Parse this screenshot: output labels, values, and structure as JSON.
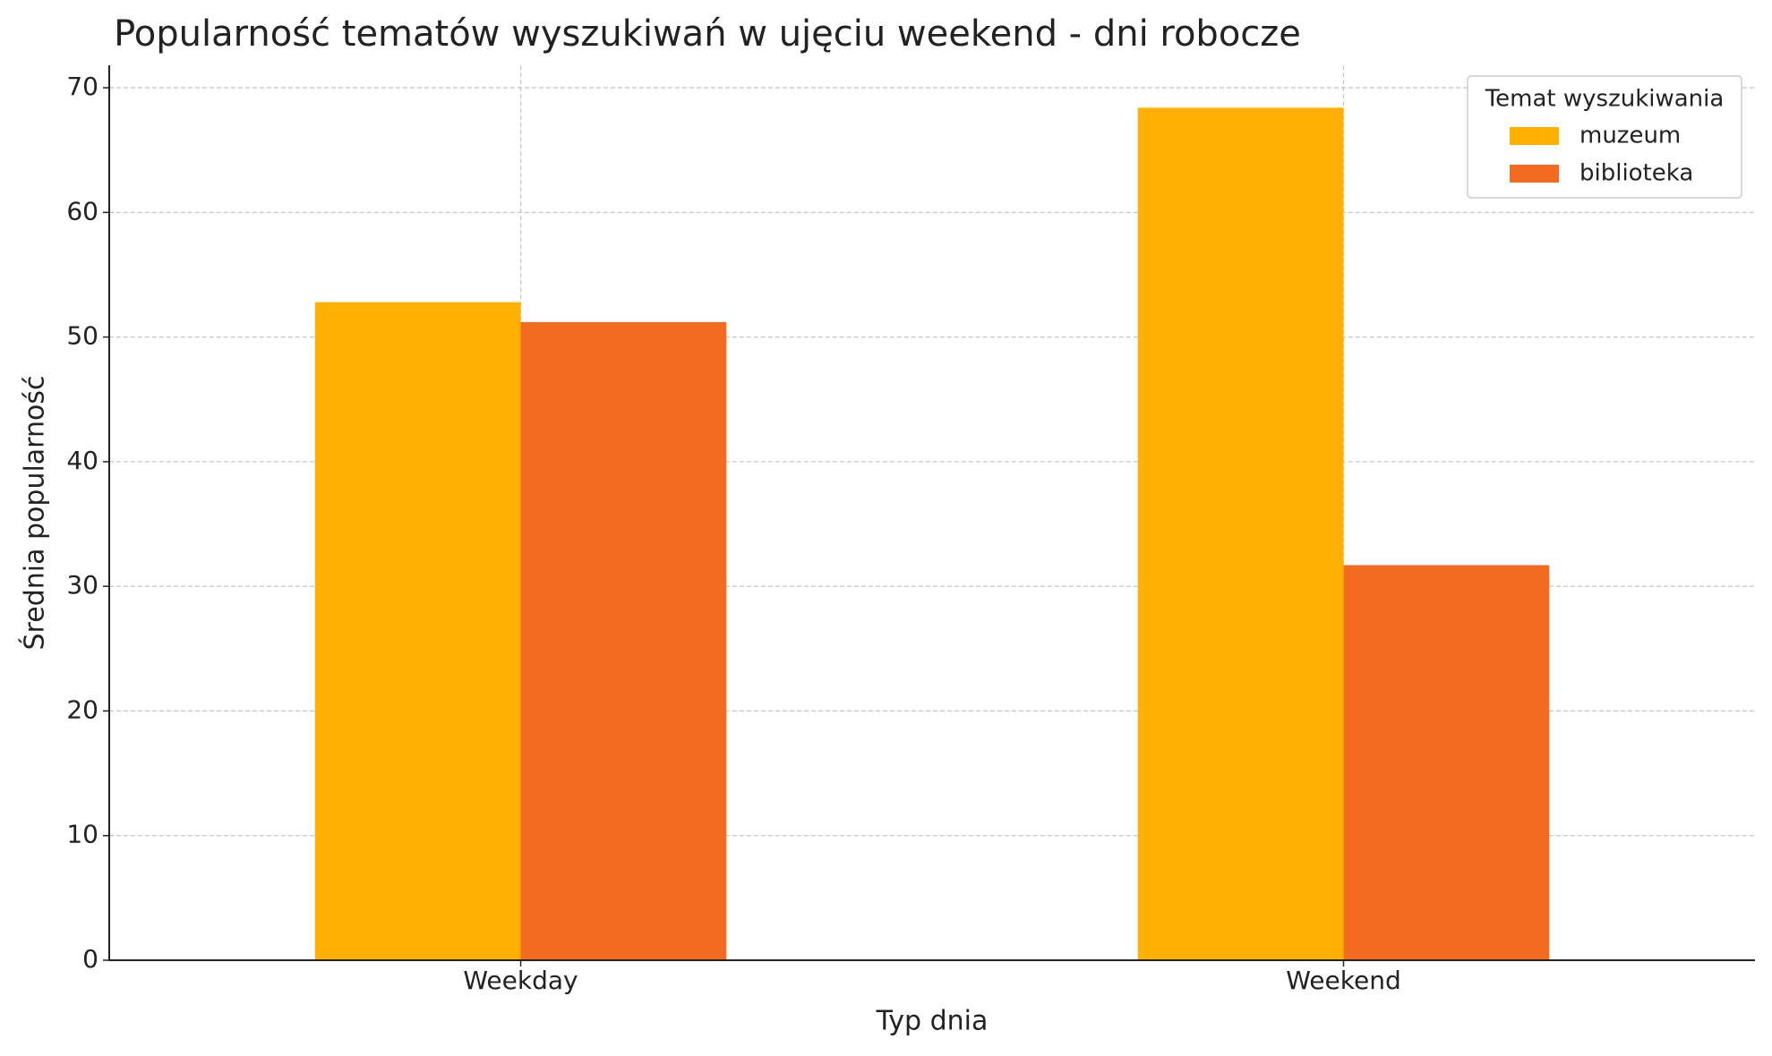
{
  "chart_data": {
    "type": "bar",
    "title": "Popularność tematów wyszukiwań w ujęciu weekend - dni robocze",
    "x_label": "Typ dnia",
    "y_label": "Średnia popularność",
    "categories": [
      "Weekday",
      "Weekend"
    ],
    "series": [
      {
        "name": "muzeum",
        "color": "#ffb000",
        "values": [
          52.8,
          68.4
        ]
      },
      {
        "name": "biblioteka",
        "color": "#f26b21",
        "values": [
          51.2,
          31.7
        ]
      }
    ],
    "ylim": [
      0,
      71.8
    ],
    "yticks": [
      0,
      10,
      20,
      30,
      40,
      50,
      60,
      70
    ],
    "grid": true,
    "legend_title": "Temat wyszukiwania",
    "legend_position": "upper right"
  }
}
